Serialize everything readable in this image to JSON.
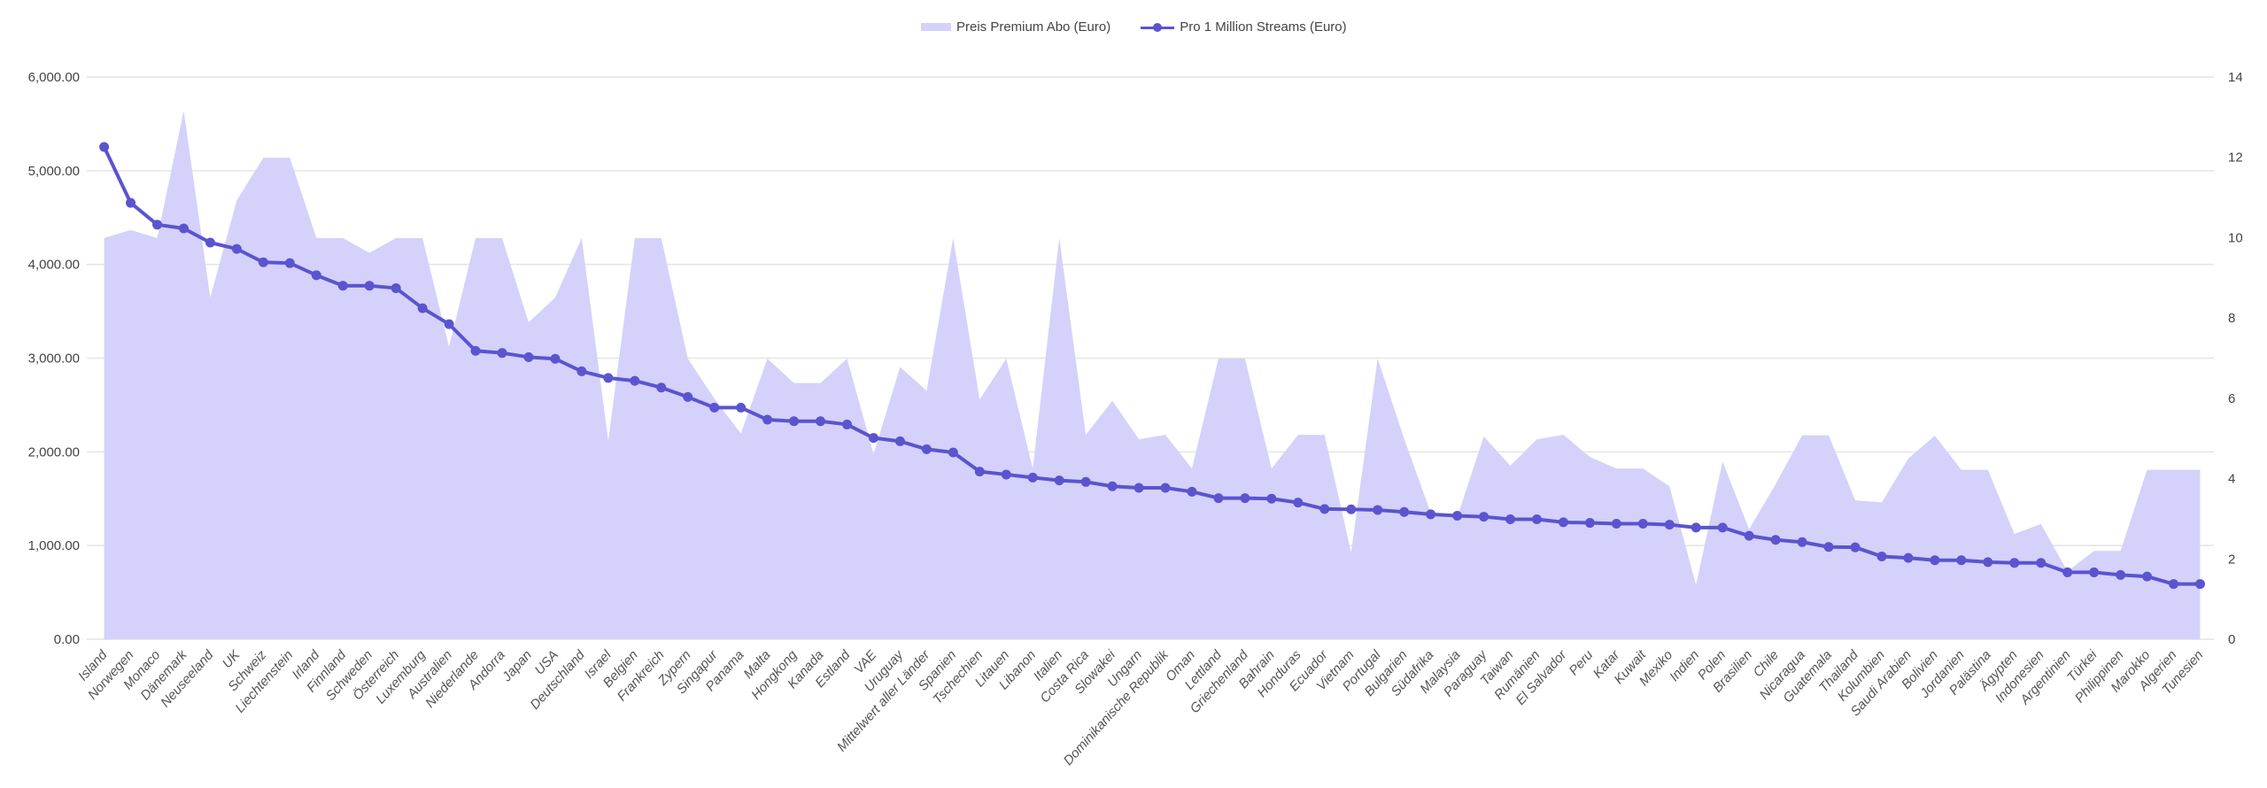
{
  "chart_data": {
    "type": "line+area",
    "title": "",
    "legend_position": "top",
    "grid": true,
    "categories": [
      "Island",
      "Norwegen",
      "Monaco",
      "Dänemark",
      "Neuseeland",
      "UK",
      "Schweiz",
      "Liechtenstein",
      "Irland",
      "Finnland",
      "Schweden",
      "Österreich",
      "Luxemburg",
      "Australien",
      "Niederlande",
      "Andorra",
      "Japan",
      "USA",
      "Deutschland",
      "Israel",
      "Belgien",
      "Frankreich",
      "Zypern",
      "Singapur",
      "Panama",
      "Malta",
      "Hongkong",
      "Kanada",
      "Estland",
      "VAE",
      "Uruguay",
      "Mittelwert aller Länder",
      "Spanien",
      "Tschechien",
      "Litauen",
      "Libanon",
      "Italien",
      "Costa Rica",
      "Slowakei",
      "Ungarn",
      "Dominikanische Republik",
      "Oman",
      "Lettland",
      "Griechenland",
      "Bahrain",
      "Honduras",
      "Ecuador",
      "Vietnam",
      "Portugal",
      "Bulgarien",
      "Südafrika",
      "Malaysia",
      "Paraguay",
      "Taiwan",
      "Rumänien",
      "El Salvador",
      "Peru",
      "Katar",
      "Kuwait",
      "Mexiko",
      "Indien",
      "Polen",
      "Brasilien",
      "Chile",
      "Nicaragua",
      "Guatemala",
      "Thailand",
      "Kolumbien",
      "Saudi Arabien",
      "Bolivien",
      "Jordanien",
      "Palästina",
      "Ägypten",
      "Indonesien",
      "Argentinien",
      "Türkei",
      "Philippinen",
      "Marokko",
      "Algerien",
      "Tunesien"
    ],
    "series": [
      {
        "name": "Preis Premium Abo (Euro)",
        "type": "area",
        "axis": "right",
        "color": "#d4d2fb",
        "values": [
          9.99,
          10.19,
          9.99,
          13.16,
          8.51,
          10.93,
          11.99,
          11.99,
          9.99,
          9.99,
          9.62,
          9.99,
          9.99,
          7.28,
          9.99,
          9.99,
          7.89,
          8.51,
          9.99,
          4.94,
          9.99,
          9.99,
          6.99,
          5.99,
          5.12,
          6.99,
          6.38,
          6.38,
          6.99,
          4.61,
          6.78,
          6.19,
          9.99,
          5.97,
          6.99,
          4.25,
          9.99,
          5.09,
          5.94,
          4.98,
          5.09,
          4.25,
          6.99,
          6.99,
          4.25,
          5.09,
          5.09,
          2.16,
          6.99,
          4.99,
          3.15,
          3.04,
          5.05,
          4.32,
          4.98,
          5.09,
          4.54,
          4.25,
          4.25,
          3.81,
          1.35,
          4.43,
          2.74,
          3.86,
          5.08,
          5.08,
          3.46,
          3.41,
          4.5,
          5.07,
          4.22,
          4.22,
          2.62,
          2.87,
          1.69,
          2.2,
          2.2,
          4.22,
          4.22,
          4.22
        ]
      },
      {
        "name": "Pro 1 Million Streams (Euro)",
        "type": "line",
        "axis": "left",
        "color": "#5b54cf",
        "values": [
          5254,
          4657,
          4425,
          4384,
          4233,
          4166,
          4023,
          4014,
          3885,
          3773,
          3773,
          3747,
          3533,
          3363,
          3078,
          3055,
          3011,
          2993,
          2859,
          2789,
          2758,
          2686,
          2585,
          2472,
          2472,
          2343,
          2327,
          2327,
          2292,
          2148,
          2113,
          2028,
          1994,
          1789,
          1758,
          1726,
          1695,
          1679,
          1632,
          1616,
          1616,
          1575,
          1506,
          1506,
          1500,
          1459,
          1390,
          1387,
          1380,
          1358,
          1333,
          1318,
          1308,
          1280,
          1280,
          1248,
          1242,
          1233,
          1233,
          1223,
          1192,
          1192,
          1104,
          1061,
          1037,
          985,
          981,
          884,
          868,
          843,
          843,
          823,
          815,
          815,
          714,
          714,
          686,
          670,
          589,
          589
        ]
      }
    ],
    "y_left": {
      "range": [
        0,
        6000
      ],
      "ticks": [
        "0.00",
        "1,000.00",
        "2,000.00",
        "3,000.00",
        "4,000.00",
        "5,000.00",
        "6,000.00"
      ]
    },
    "y_right": {
      "range": [
        0,
        14
      ],
      "ticks": [
        "0",
        "2",
        "4",
        "6",
        "8",
        "10",
        "12",
        "14"
      ]
    },
    "xlabel": "",
    "ylabel": ""
  }
}
